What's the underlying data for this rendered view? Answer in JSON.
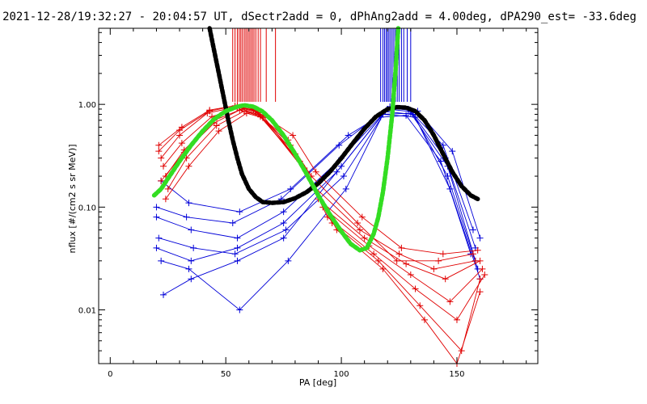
{
  "title": "2021-12-28/19:32:27 - 20:04:57 UT, dSectr2add = 0, dPhAng2add = 4.00deg, dPA290_est= -33.6deg",
  "colors": {
    "red": "#e00000",
    "blue": "#0000d8",
    "black": "#000000",
    "green": "#33dd22"
  },
  "chart_data": {
    "type": "line",
    "xlabel": "PA [deg]",
    "ylabel": "nflux [#/(cm2 s sr MeV)]",
    "xlim": [
      -5,
      185
    ],
    "ylim": [
      0.003,
      5.5
    ],
    "yscale": "log",
    "grid": false,
    "x_ticks": [
      {
        "value": 0,
        "label": "0"
      },
      {
        "value": 50,
        "label": "50"
      },
      {
        "value": 100,
        "label": "100"
      },
      {
        "value": 150,
        "label": "150"
      }
    ],
    "y_ticks": [
      {
        "value": 0.01,
        "label": "0.01"
      },
      {
        "value": 0.1,
        "label": "0.10"
      },
      {
        "value": 1.0,
        "label": "1.00"
      }
    ],
    "rug_red_pa": [
      53,
      54,
      55,
      55.8,
      56.5,
      57.2,
      58,
      58.7,
      59.4,
      60.1,
      60.8,
      61.5,
      62.2,
      63,
      64,
      65,
      67.5,
      71.5
    ],
    "rug_blue_pa": [
      117,
      118,
      118.7,
      119.4,
      120,
      120.6,
      121.3,
      122,
      122.7,
      123.4,
      124.2,
      125,
      126,
      127,
      128.5,
      130
    ],
    "red_curves": [
      {
        "x": [
          22,
          30,
          42,
          55,
          63,
          78,
          88,
          108,
          125,
          140,
          158
        ],
        "y": [
          0.3,
          0.5,
          0.82,
          0.95,
          0.86,
          0.4,
          0.16,
          0.06,
          0.035,
          0.025,
          0.03
        ]
      },
      {
        "x": [
          23,
          31,
          44,
          56,
          64,
          80,
          90,
          110,
          128,
          145,
          160
        ],
        "y": [
          0.25,
          0.42,
          0.76,
          0.93,
          0.83,
          0.33,
          0.12,
          0.05,
          0.028,
          0.02,
          0.03
        ]
      },
      {
        "x": [
          24,
          32,
          45,
          57,
          64,
          82,
          92,
          112,
          130,
          147,
          161
        ],
        "y": [
          0.2,
          0.36,
          0.7,
          0.9,
          0.8,
          0.28,
          0.1,
          0.042,
          0.022,
          0.012,
          0.025
        ]
      },
      {
        "x": [
          21,
          30,
          43,
          54,
          62,
          77,
          87,
          107,
          124,
          142,
          157
        ],
        "y": [
          0.35,
          0.56,
          0.86,
          0.97,
          0.88,
          0.45,
          0.2,
          0.07,
          0.03,
          0.03,
          0.035
        ]
      },
      {
        "x": [
          25,
          33,
          46,
          58,
          65,
          84,
          94,
          114,
          132,
          150,
          162
        ],
        "y": [
          0.15,
          0.3,
          0.62,
          0.86,
          0.76,
          0.24,
          0.08,
          0.035,
          0.016,
          0.008,
          0.022
        ]
      },
      {
        "x": [
          22,
          32,
          45,
          56,
          66,
          85,
          96,
          116,
          134,
          152,
          160
        ],
        "y": [
          0.18,
          0.34,
          0.66,
          0.88,
          0.78,
          0.22,
          0.07,
          0.03,
          0.011,
          0.004,
          0.02
        ]
      },
      {
        "x": [
          24,
          34,
          47,
          59,
          66,
          86,
          98,
          118,
          136,
          150,
          160
        ],
        "y": [
          0.12,
          0.25,
          0.55,
          0.82,
          0.74,
          0.2,
          0.06,
          0.025,
          0.008,
          0.003,
          0.015
        ]
      },
      {
        "x": [
          21,
          31,
          43,
          55,
          62,
          79,
          89,
          109,
          126,
          144,
          159
        ],
        "y": [
          0.4,
          0.6,
          0.88,
          0.98,
          0.9,
          0.5,
          0.22,
          0.08,
          0.04,
          0.035,
          0.038
        ]
      }
    ],
    "blue_curves": [
      {
        "x": [
          20,
          35,
          55,
          75,
          100,
          120,
          130,
          145,
          158
        ],
        "y": [
          0.08,
          0.06,
          0.05,
          0.09,
          0.3,
          0.9,
          0.85,
          0.3,
          0.04
        ]
      },
      {
        "x": [
          21,
          36,
          54,
          76,
          101,
          119,
          131,
          146,
          159
        ],
        "y": [
          0.05,
          0.04,
          0.035,
          0.06,
          0.2,
          0.85,
          0.8,
          0.2,
          0.025
        ]
      },
      {
        "x": [
          22,
          34,
          56,
          77,
          102,
          118,
          132,
          147,
          160
        ],
        "y": [
          0.03,
          0.025,
          0.01,
          0.03,
          0.15,
          0.8,
          0.75,
          0.15,
          0.02
        ]
      },
      {
        "x": [
          20,
          33,
          53,
          74,
          99,
          121,
          129,
          144,
          157
        ],
        "y": [
          0.1,
          0.08,
          0.07,
          0.12,
          0.4,
          0.95,
          0.9,
          0.4,
          0.06
        ]
      },
      {
        "x": [
          23,
          35,
          55,
          75,
          100,
          118,
          130,
          146,
          158
        ],
        "y": [
          0.014,
          0.02,
          0.03,
          0.05,
          0.25,
          0.8,
          0.82,
          0.25,
          0.03
        ]
      },
      {
        "x": [
          22,
          34,
          56,
          78,
          103,
          122,
          133,
          148,
          160
        ],
        "y": [
          0.18,
          0.11,
          0.09,
          0.15,
          0.5,
          0.92,
          0.86,
          0.35,
          0.05
        ]
      },
      {
        "x": [
          20,
          35,
          55,
          75,
          98,
          117,
          128,
          143,
          156
        ],
        "y": [
          0.04,
          0.03,
          0.04,
          0.07,
          0.22,
          0.75,
          0.78,
          0.28,
          0.035
        ]
      }
    ],
    "black_curve": [
      [
        43,
        5.5
      ],
      [
        45,
        3.3
      ],
      [
        47,
        2.0
      ],
      [
        49,
        1.2
      ],
      [
        51,
        0.72
      ],
      [
        53,
        0.45
      ],
      [
        55,
        0.3
      ],
      [
        57,
        0.21
      ],
      [
        60,
        0.15
      ],
      [
        63,
        0.125
      ],
      [
        66,
        0.112
      ],
      [
        70,
        0.11
      ],
      [
        75,
        0.112
      ],
      [
        80,
        0.122
      ],
      [
        85,
        0.14
      ],
      [
        90,
        0.17
      ],
      [
        95,
        0.22
      ],
      [
        100,
        0.3
      ],
      [
        105,
        0.42
      ],
      [
        110,
        0.58
      ],
      [
        115,
        0.76
      ],
      [
        120,
        0.9
      ],
      [
        124,
        0.94
      ],
      [
        128,
        0.93
      ],
      [
        132,
        0.86
      ],
      [
        136,
        0.7
      ],
      [
        140,
        0.5
      ],
      [
        144,
        0.33
      ],
      [
        148,
        0.22
      ],
      [
        152,
        0.16
      ],
      [
        156,
        0.13
      ],
      [
        159,
        0.12
      ]
    ],
    "green_curve": [
      [
        19,
        0.13
      ],
      [
        22,
        0.15
      ],
      [
        25,
        0.19
      ],
      [
        30,
        0.28
      ],
      [
        35,
        0.4
      ],
      [
        40,
        0.55
      ],
      [
        45,
        0.72
      ],
      [
        50,
        0.86
      ],
      [
        55,
        0.95
      ],
      [
        58,
        0.98
      ],
      [
        62,
        0.95
      ],
      [
        66,
        0.85
      ],
      [
        70,
        0.7
      ],
      [
        75,
        0.5
      ],
      [
        80,
        0.33
      ],
      [
        85,
        0.21
      ],
      [
        90,
        0.13
      ],
      [
        95,
        0.085
      ],
      [
        100,
        0.058
      ],
      [
        104,
        0.044
      ],
      [
        108,
        0.038
      ],
      [
        111,
        0.04
      ],
      [
        114,
        0.055
      ],
      [
        116,
        0.08
      ],
      [
        118,
        0.14
      ],
      [
        120,
        0.3
      ],
      [
        122,
        0.8
      ],
      [
        123.5,
        2.2
      ],
      [
        124.6,
        5.5
      ]
    ]
  }
}
